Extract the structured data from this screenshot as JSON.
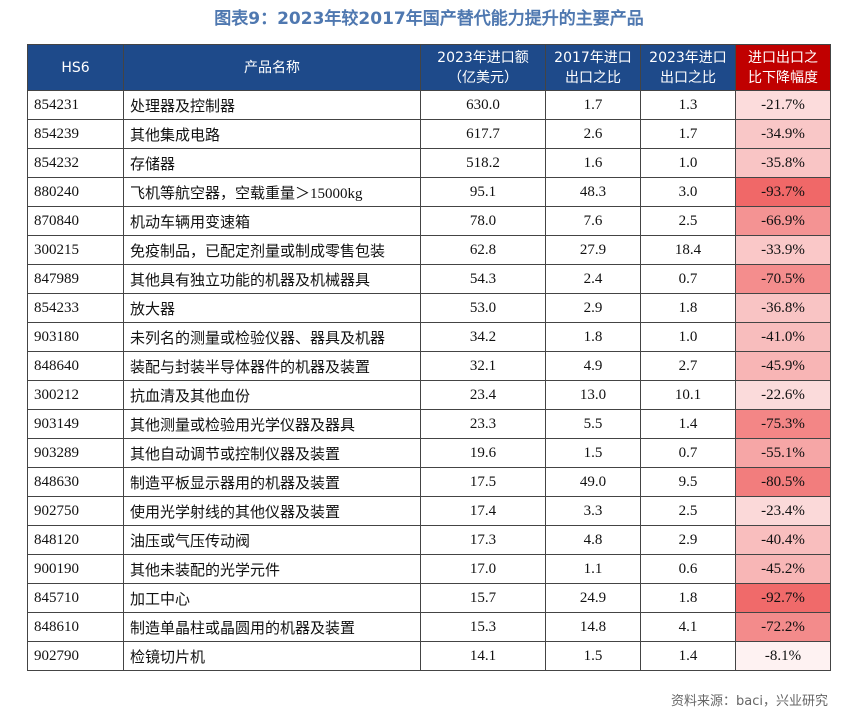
{
  "title": "图表9：2023年较2017年国产替代能力提升的主要产品",
  "table": {
    "header": [
      "HS6",
      "产品名称",
      "2023年进口额\n（亿美元）",
      "2017年进口\n出口之比",
      "2023年进口\n出口之比",
      "进口出口之\n比下降幅度"
    ],
    "rows": [
      [
        "854231",
        "处理器及控制器",
        "630.0",
        "1.7",
        "1.3",
        "-21.7%"
      ],
      [
        "854239",
        "其他集成电路",
        "617.7",
        "2.6",
        "1.7",
        "-34.9%"
      ],
      [
        "854232",
        "存储器",
        "518.2",
        "1.6",
        "1.0",
        "-35.8%"
      ],
      [
        "880240",
        "飞机等航空器，空载重量＞15000kg",
        "95.1",
        "48.3",
        "3.0",
        "-93.7%"
      ],
      [
        "870840",
        "机动车辆用变速箱",
        "78.0",
        "7.6",
        "2.5",
        "-66.9%"
      ],
      [
        "300215",
        "免疫制品，已配定剂量或制成零售包装",
        "62.8",
        "27.9",
        "18.4",
        "-33.9%"
      ],
      [
        "847989",
        "其他具有独立功能的机器及机械器具",
        "54.3",
        "2.4",
        "0.7",
        "-70.5%"
      ],
      [
        "854233",
        "放大器",
        "53.0",
        "2.9",
        "1.8",
        "-36.8%"
      ],
      [
        "903180",
        "未列名的测量或检验仪器、器具及机器",
        "34.2",
        "1.8",
        "1.0",
        "-41.0%"
      ],
      [
        "848640",
        "装配与封装半导体器件的机器及装置",
        "32.1",
        "4.9",
        "2.7",
        "-45.9%"
      ],
      [
        "300212",
        "抗血清及其他血份",
        "23.4",
        "13.0",
        "10.1",
        "-22.6%"
      ],
      [
        "903149",
        "其他测量或检验用光学仪器及器具",
        "23.3",
        "5.5",
        "1.4",
        "-75.3%"
      ],
      [
        "903289",
        "其他自动调节或控制仪器及装置",
        "19.6",
        "1.5",
        "0.7",
        "-55.1%"
      ],
      [
        "848630",
        "制造平板显示器用的机器及装置",
        "17.5",
        "49.0",
        "9.5",
        "-80.5%"
      ],
      [
        "902750",
        "使用光学射线的其他仪器及装置",
        "17.4",
        "3.3",
        "2.5",
        "-23.4%"
      ],
      [
        "848120",
        "油压或气压传动阀",
        "17.3",
        "4.8",
        "2.9",
        "-40.4%"
      ],
      [
        "900190",
        "其他未装配的光学元件",
        "17.0",
        "1.1",
        "0.6",
        "-45.2%"
      ],
      [
        "845710",
        "加工中心",
        "15.7",
        "24.9",
        "1.8",
        "-92.7%"
      ],
      [
        "848610",
        "制造单晶柱或晶圆用的机器及装置",
        "15.3",
        "14.8",
        "4.1",
        "-72.2%"
      ],
      [
        "902790",
        "检镜切片机",
        "14.1",
        "1.5",
        "1.4",
        "-8.1%"
      ]
    ]
  },
  "source": "资料来源：baci，兴业研究"
}
